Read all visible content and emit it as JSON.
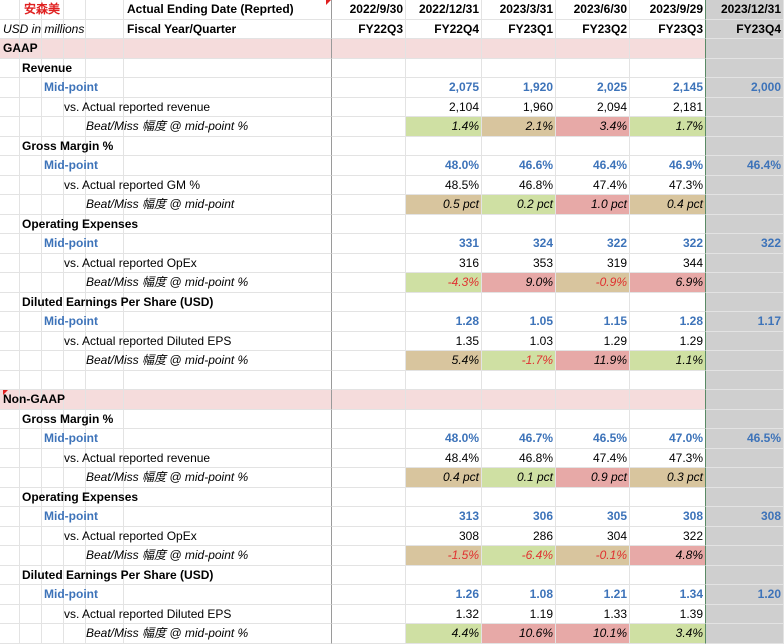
{
  "header": {
    "company": "安森美",
    "row1_label": "Actual Ending Date (Reprted)",
    "row2_left": "USD in millions",
    "row2_label": "Fiscal Year/Quarter",
    "dates": [
      "2022/9/30",
      "2022/12/31",
      "2023/3/31",
      "2023/6/30",
      "2023/9/29",
      "2023/12/31"
    ],
    "quarters": [
      "FY22Q3",
      "FY22Q4",
      "FY23Q1",
      "FY23Q2",
      "FY23Q3",
      "FY23Q4"
    ]
  },
  "colors": {
    "section_bg": "#f5dcdc",
    "green": "#cfe0a3",
    "tan": "#d8c59e",
    "pink": "#e7a9a7",
    "blue_text": "#3d73b9",
    "neg_red": "#e03030",
    "forecast_col": "#cfcfcf"
  },
  "rows": [
    {
      "kind": "section",
      "label": "GAAP"
    },
    {
      "kind": "metric",
      "label": "Revenue"
    },
    {
      "kind": "mid",
      "label": "Mid-point",
      "values": [
        "",
        "2,075",
        "1,920",
        "2,025",
        "2,145",
        "2,000"
      ]
    },
    {
      "kind": "actual",
      "label": "vs. Actual reported revenue",
      "values": [
        "",
        "2,104",
        "1,960",
        "2,094",
        "2,181",
        ""
      ]
    },
    {
      "kind": "beat",
      "label": "Beat/Miss 幅度 @ mid-point %",
      "values": [
        "",
        "1.4%",
        "2.1%",
        "3.4%",
        "1.7%",
        ""
      ],
      "styles": [
        "",
        "green",
        "tan",
        "pink",
        "green",
        ""
      ]
    },
    {
      "kind": "metric",
      "label": "Gross Margin %"
    },
    {
      "kind": "mid",
      "label": "Mid-point",
      "values": [
        "",
        "48.0%",
        "46.6%",
        "46.4%",
        "46.9%",
        "46.4%"
      ]
    },
    {
      "kind": "actual",
      "label": "vs. Actual reported GM %",
      "values": [
        "",
        "48.5%",
        "46.8%",
        "47.4%",
        "47.3%",
        ""
      ]
    },
    {
      "kind": "beat",
      "label": "Beat/Miss 幅度 @ mid-point",
      "values": [
        "",
        "0.5 pct",
        "0.2 pct",
        "1.0 pct",
        "0.4 pct",
        ""
      ],
      "styles": [
        "",
        "tan",
        "green",
        "pink",
        "tan",
        ""
      ]
    },
    {
      "kind": "metric",
      "label": "Operating Expenses"
    },
    {
      "kind": "mid",
      "label": "Mid-point",
      "values": [
        "",
        "331",
        "324",
        "322",
        "322",
        "322"
      ]
    },
    {
      "kind": "actual",
      "label": "vs. Actual reported OpEx",
      "values": [
        "",
        "316",
        "353",
        "319",
        "344",
        ""
      ]
    },
    {
      "kind": "beat",
      "label": "Beat/Miss 幅度 @ mid-point %",
      "values": [
        "",
        "-4.3%",
        "9.0%",
        "-0.9%",
        "6.9%",
        ""
      ],
      "styles": [
        "",
        "green",
        "pink",
        "tan",
        "pink",
        ""
      ]
    },
    {
      "kind": "metric",
      "label": "Diluted Earnings Per Share (USD)"
    },
    {
      "kind": "mid",
      "label": "Mid-point",
      "values": [
        "",
        "1.28",
        "1.05",
        "1.15",
        "1.28",
        "1.17"
      ]
    },
    {
      "kind": "actual",
      "label": "vs. Actual reported Diluted EPS",
      "values": [
        "",
        "1.35",
        "1.03",
        "1.29",
        "1.29",
        ""
      ]
    },
    {
      "kind": "beat",
      "label": "Beat/Miss 幅度 @ mid-point %",
      "values": [
        "",
        "5.4%",
        "-1.7%",
        "11.9%",
        "1.1%",
        ""
      ],
      "styles": [
        "",
        "tan",
        "green",
        "pink",
        "green",
        ""
      ]
    },
    {
      "kind": "blank"
    },
    {
      "kind": "section",
      "label": "Non-GAAP"
    },
    {
      "kind": "metric",
      "label": "Gross Margin %"
    },
    {
      "kind": "mid",
      "label": "Mid-point",
      "values": [
        "",
        "48.0%",
        "46.7%",
        "46.5%",
        "47.0%",
        "46.5%"
      ]
    },
    {
      "kind": "actual",
      "label": "vs. Actual reported revenue",
      "values": [
        "",
        "48.4%",
        "46.8%",
        "47.4%",
        "47.3%",
        ""
      ]
    },
    {
      "kind": "beat",
      "label": "Beat/Miss 幅度 @ mid-point %",
      "values": [
        "",
        "0.4 pct",
        "0.1 pct",
        "0.9 pct",
        "0.3 pct",
        ""
      ],
      "styles": [
        "",
        "tan",
        "green",
        "pink",
        "tan",
        ""
      ]
    },
    {
      "kind": "metric",
      "label": "Operating Expenses"
    },
    {
      "kind": "mid",
      "label": "Mid-point",
      "values": [
        "",
        "313",
        "306",
        "305",
        "308",
        "308"
      ]
    },
    {
      "kind": "actual",
      "label": "vs. Actual reported OpEx",
      "values": [
        "",
        "308",
        "286",
        "304",
        "322",
        ""
      ]
    },
    {
      "kind": "beat",
      "label": "Beat/Miss 幅度 @ mid-point %",
      "values": [
        "",
        "-1.5%",
        "-6.4%",
        "-0.1%",
        "4.8%",
        ""
      ],
      "styles": [
        "",
        "tan",
        "green",
        "tan",
        "pink",
        ""
      ]
    },
    {
      "kind": "metric",
      "label": "Diluted Earnings Per Share (USD)"
    },
    {
      "kind": "mid",
      "label": "Mid-point",
      "values": [
        "",
        "1.26",
        "1.08",
        "1.21",
        "1.34",
        "1.20"
      ]
    },
    {
      "kind": "actual",
      "label": "vs. Actual reported Diluted EPS",
      "values": [
        "",
        "1.32",
        "1.19",
        "1.33",
        "1.39",
        ""
      ]
    },
    {
      "kind": "beat",
      "label": "Beat/Miss 幅度 @ mid-point %",
      "values": [
        "",
        "4.4%",
        "10.6%",
        "10.1%",
        "3.4%",
        ""
      ],
      "styles": [
        "",
        "green",
        "pink",
        "pink",
        "green",
        ""
      ]
    }
  ]
}
